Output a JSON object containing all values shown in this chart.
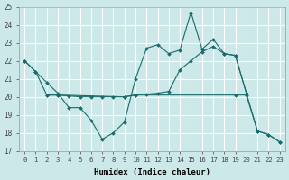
{
  "xlabel": "Humidex (Indice chaleur)",
  "ylabel": "",
  "xlim": [
    -0.5,
    23.5
  ],
  "ylim": [
    17,
    25
  ],
  "yticks": [
    17,
    18,
    19,
    20,
    21,
    22,
    23,
    24,
    25
  ],
  "xticks": [
    0,
    1,
    2,
    3,
    4,
    5,
    6,
    7,
    8,
    9,
    10,
    11,
    12,
    13,
    14,
    15,
    16,
    17,
    18,
    19,
    20,
    21,
    22,
    23
  ],
  "background_color": "#cce8e8",
  "grid_color": "#ffffff",
  "line_color": "#1a6b6b",
  "line1_x": [
    0,
    1,
    2,
    3,
    4,
    5,
    6,
    7,
    8,
    9,
    10,
    11,
    12,
    13,
    14,
    15,
    16,
    17,
    18,
    19,
    20,
    21,
    22,
    23
  ],
  "line1_y": [
    22.0,
    21.4,
    20.8,
    20.2,
    19.4,
    19.4,
    18.7,
    17.65,
    18.0,
    18.6,
    21.0,
    22.7,
    22.9,
    22.4,
    22.6,
    24.7,
    22.65,
    23.2,
    22.4,
    22.3,
    20.2,
    18.1,
    17.9,
    17.5
  ],
  "line2_x": [
    0,
    1,
    2,
    3,
    9,
    10,
    19,
    20,
    21,
    22,
    23
  ],
  "line2_y": [
    22.0,
    21.4,
    20.1,
    20.1,
    20.0,
    20.1,
    20.1,
    20.1,
    18.1,
    17.9,
    17.5
  ],
  "line3_x": [
    2,
    3,
    4,
    5,
    6,
    7,
    8,
    9,
    10,
    11,
    12,
    13,
    14,
    15,
    16,
    17,
    18,
    19,
    20
  ],
  "line3_y": [
    20.1,
    20.1,
    20.05,
    20.0,
    20.0,
    20.0,
    20.0,
    20.0,
    20.1,
    20.15,
    20.2,
    20.3,
    21.5,
    22.0,
    22.5,
    22.8,
    22.4,
    22.3,
    20.2
  ]
}
